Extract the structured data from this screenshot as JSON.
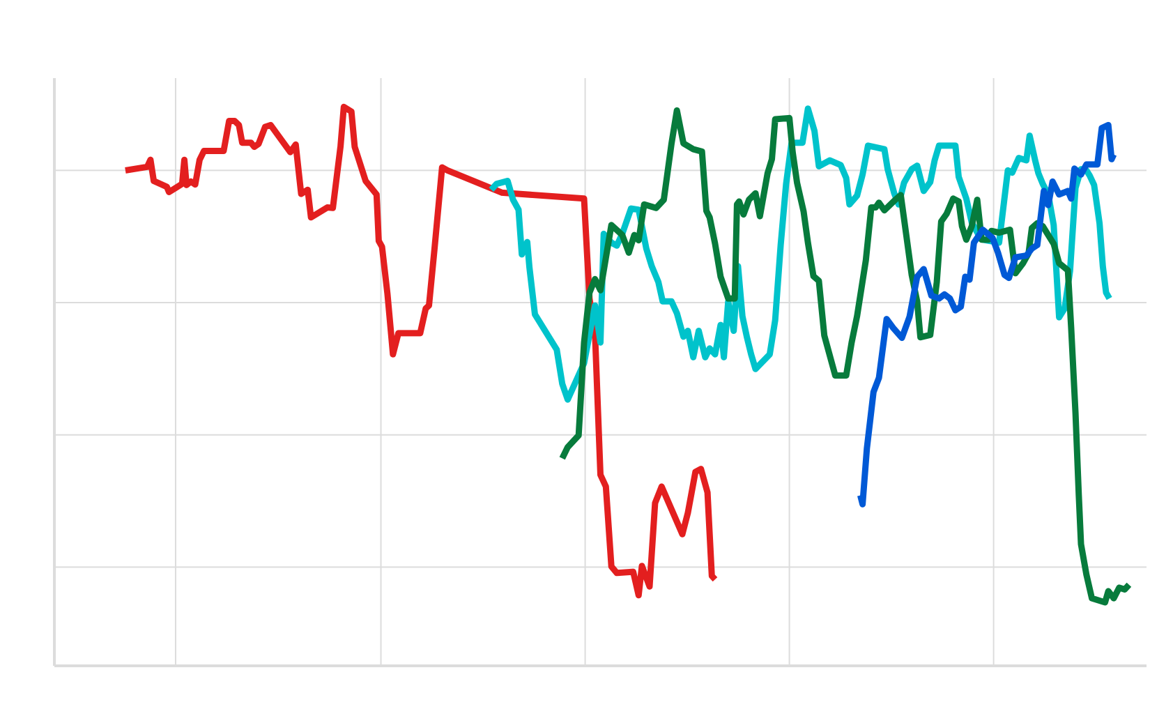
{
  "chart_data": {
    "type": "line",
    "title": "",
    "xlabel": "",
    "ylabel": "",
    "xlim": [
      0,
      100
    ],
    "ylim": [
      0,
      100
    ],
    "xticks": [
      11.1,
      29.9,
      48.6,
      67.3,
      86.0
    ],
    "yticks": [
      16.8,
      39.3,
      61.8,
      84.3
    ],
    "grid": true,
    "legend": "none",
    "series": [
      {
        "color": "#e31f1f",
        "points": [
          [
            6.5,
            84.3
          ],
          [
            8.5,
            84.9
          ],
          [
            8.8,
            86.1
          ],
          [
            9.1,
            82.5
          ],
          [
            10.3,
            81.5
          ],
          [
            10.5,
            80.6
          ],
          [
            11.7,
            82.0
          ],
          [
            11.9,
            86.1
          ],
          [
            12.1,
            81.8
          ],
          [
            12.5,
            82.4
          ],
          [
            12.9,
            81.9
          ],
          [
            13.3,
            86.1
          ],
          [
            13.7,
            87.6
          ],
          [
            15.5,
            87.6
          ],
          [
            16.0,
            92.7
          ],
          [
            16.5,
            92.7
          ],
          [
            16.9,
            92.0
          ],
          [
            17.2,
            89.0
          ],
          [
            18.0,
            89.0
          ],
          [
            18.3,
            88.3
          ],
          [
            18.7,
            88.8
          ],
          [
            19.3,
            91.7
          ],
          [
            19.8,
            92.0
          ],
          [
            21.6,
            87.4
          ],
          [
            22.1,
            88.7
          ],
          [
            22.4,
            83.6
          ],
          [
            22.6,
            80.3
          ],
          [
            23.2,
            81.0
          ],
          [
            23.5,
            76.3
          ],
          [
            25.0,
            78.0
          ],
          [
            25.5,
            77.9
          ],
          [
            26.2,
            88.4
          ],
          [
            26.5,
            95.1
          ],
          [
            27.2,
            94.3
          ],
          [
            27.5,
            88.3
          ],
          [
            28.5,
            82.5
          ],
          [
            29.5,
            80.2
          ],
          [
            29.7,
            72.3
          ],
          [
            30.0,
            71.3
          ],
          [
            30.5,
            63.3
          ],
          [
            31.0,
            53.0
          ],
          [
            31.5,
            56.6
          ],
          [
            33.5,
            56.6
          ],
          [
            34.0,
            60.8
          ],
          [
            34.3,
            61.3
          ],
          [
            34.8,
            70.8
          ],
          [
            35.5,
            84.8
          ],
          [
            36.0,
            84.3
          ],
          [
            41.0,
            80.5
          ],
          [
            48.5,
            79.5
          ],
          [
            49.0,
            62.5
          ],
          [
            49.5,
            56.5
          ],
          [
            50.0,
            32.5
          ],
          [
            50.5,
            30.5
          ],
          [
            51.0,
            16.9
          ],
          [
            51.5,
            15.8
          ],
          [
            53.0,
            16.0
          ],
          [
            53.5,
            12.0
          ],
          [
            53.8,
            17.0
          ],
          [
            54.5,
            13.5
          ],
          [
            55.0,
            27.7
          ],
          [
            55.6,
            30.5
          ],
          [
            57.5,
            22.4
          ],
          [
            58.0,
            26.0
          ],
          [
            58.7,
            33.0
          ],
          [
            59.2,
            33.5
          ],
          [
            59.8,
            29.5
          ],
          [
            60.2,
            15.3
          ],
          [
            60.5,
            14.7
          ]
        ]
      },
      {
        "color": "#00c3cb",
        "points": [
          [
            40.0,
            81.0
          ],
          [
            40.5,
            82.0
          ],
          [
            41.5,
            82.5
          ],
          [
            42.0,
            79.3
          ],
          [
            42.5,
            77.6
          ],
          [
            42.8,
            70.0
          ],
          [
            43.3,
            72.1
          ],
          [
            43.5,
            67.8
          ],
          [
            44.0,
            59.8
          ],
          [
            46.0,
            53.8
          ],
          [
            46.5,
            48.0
          ],
          [
            47.0,
            45.3
          ],
          [
            48.5,
            51.5
          ],
          [
            49.5,
            61.3
          ],
          [
            50.0,
            55.0
          ],
          [
            50.3,
            73.5
          ],
          [
            51.0,
            72.0
          ],
          [
            51.5,
            71.5
          ],
          [
            52.0,
            73.5
          ],
          [
            52.8,
            77.8
          ],
          [
            53.5,
            77.6
          ],
          [
            54.2,
            71.0
          ],
          [
            54.7,
            68.0
          ],
          [
            55.3,
            65.3
          ],
          [
            55.7,
            62.0
          ],
          [
            56.5,
            62.0
          ],
          [
            57.0,
            60.0
          ],
          [
            57.6,
            56.0
          ],
          [
            58.0,
            57.0
          ],
          [
            58.5,
            52.5
          ],
          [
            59.0,
            57.0
          ],
          [
            59.6,
            52.5
          ],
          [
            60.0,
            54.0
          ],
          [
            60.5,
            53.0
          ],
          [
            61.0,
            58.0
          ],
          [
            61.3,
            52.5
          ],
          [
            61.7,
            62.0
          ],
          [
            62.2,
            57.0
          ],
          [
            62.6,
            68.0
          ],
          [
            63.0,
            59.5
          ],
          [
            63.4,
            56.0
          ],
          [
            63.8,
            53.0
          ],
          [
            64.2,
            50.5
          ],
          [
            65.5,
            53.0
          ],
          [
            66.0,
            58.8
          ],
          [
            66.5,
            71.6
          ],
          [
            67.0,
            82.0
          ],
          [
            67.5,
            89.0
          ],
          [
            68.5,
            89.0
          ],
          [
            69.0,
            94.8
          ],
          [
            69.6,
            91.0
          ],
          [
            70.0,
            85.0
          ],
          [
            71.0,
            86.0
          ],
          [
            72.0,
            85.2
          ],
          [
            72.5,
            83.0
          ],
          [
            72.8,
            78.5
          ],
          [
            73.5,
            80.0
          ],
          [
            74.0,
            83.6
          ],
          [
            74.5,
            88.5
          ],
          [
            76.0,
            87.9
          ],
          [
            76.3,
            84.5
          ],
          [
            76.9,
            80.4
          ],
          [
            77.3,
            78.5
          ],
          [
            77.8,
            82.2
          ],
          [
            78.5,
            84.5
          ],
          [
            79.0,
            85.1
          ],
          [
            79.6,
            80.8
          ],
          [
            80.2,
            82.3
          ],
          [
            80.6,
            86.0
          ],
          [
            81.0,
            88.5
          ],
          [
            82.5,
            88.5
          ],
          [
            82.8,
            83.2
          ],
          [
            83.5,
            79.5
          ],
          [
            84.0,
            75.4
          ],
          [
            84.6,
            73.4
          ],
          [
            85.0,
            72.5
          ],
          [
            86.5,
            72.0
          ],
          [
            87.3,
            84.3
          ],
          [
            87.7,
            83.9
          ],
          [
            88.3,
            86.4
          ],
          [
            89.0,
            86.0
          ],
          [
            89.3,
            90.2
          ],
          [
            89.8,
            86.0
          ],
          [
            90.1,
            83.8
          ],
          [
            90.5,
            82.0
          ],
          [
            91.0,
            80.2
          ],
          [
            91.5,
            75.0
          ],
          [
            92.0,
            59.3
          ],
          [
            92.5,
            60.8
          ],
          [
            93.0,
            67.2
          ],
          [
            93.5,
            81.3
          ],
          [
            94.0,
            84.5
          ],
          [
            94.5,
            84.3
          ],
          [
            94.8,
            83.4
          ],
          [
            95.2,
            81.8
          ],
          [
            95.7,
            75.3
          ],
          [
            96.0,
            68.0
          ],
          [
            96.3,
            63.5
          ],
          [
            96.6,
            62.5
          ]
        ]
      },
      {
        "color": "#077b3c",
        "points": [
          [
            46.5,
            35.3
          ],
          [
            47.0,
            37.2
          ],
          [
            48.0,
            39.2
          ],
          [
            48.5,
            55.0
          ],
          [
            49.0,
            63.5
          ],
          [
            49.5,
            65.8
          ],
          [
            50.0,
            63.9
          ],
          [
            51.0,
            75.0
          ],
          [
            52.0,
            73.3
          ],
          [
            52.6,
            70.3
          ],
          [
            53.1,
            73.3
          ],
          [
            53.5,
            72.4
          ],
          [
            54.0,
            78.5
          ],
          [
            55.1,
            77.9
          ],
          [
            55.8,
            79.3
          ],
          [
            56.5,
            88.8
          ],
          [
            57.0,
            94.5
          ],
          [
            57.6,
            88.9
          ],
          [
            58.5,
            87.9
          ],
          [
            59.3,
            87.5
          ],
          [
            59.7,
            77.4
          ],
          [
            60.0,
            76.3
          ],
          [
            60.5,
            71.8
          ],
          [
            61.0,
            66.2
          ],
          [
            61.7,
            62.5
          ],
          [
            62.3,
            62.5
          ],
          [
            62.5,
            78.5
          ],
          [
            62.7,
            79.0
          ],
          [
            63.1,
            76.8
          ],
          [
            63.6,
            79.3
          ],
          [
            64.2,
            80.4
          ],
          [
            64.6,
            76.5
          ],
          [
            65.3,
            83.8
          ],
          [
            65.7,
            86.2
          ],
          [
            66.0,
            93.0
          ],
          [
            67.3,
            93.2
          ],
          [
            67.6,
            87.4
          ],
          [
            68.0,
            82.2
          ],
          [
            68.6,
            77.3
          ],
          [
            69.0,
            72.0
          ],
          [
            69.5,
            66.3
          ],
          [
            70.0,
            65.5
          ],
          [
            70.5,
            56.2
          ],
          [
            71.5,
            49.4
          ],
          [
            72.5,
            49.4
          ],
          [
            73.0,
            55.0
          ],
          [
            73.5,
            59.5
          ],
          [
            74.3,
            69.0
          ],
          [
            74.8,
            78.0
          ],
          [
            75.2,
            78.0
          ],
          [
            75.5,
            78.8
          ],
          [
            76.0,
            77.5
          ],
          [
            77.0,
            79.3
          ],
          [
            77.5,
            80.1
          ],
          [
            78.0,
            73.3
          ],
          [
            78.5,
            66.5
          ],
          [
            79.0,
            62.0
          ],
          [
            79.3,
            55.9
          ],
          [
            80.2,
            56.3
          ],
          [
            80.8,
            65.3
          ],
          [
            81.2,
            75.6
          ],
          [
            81.7,
            76.9
          ],
          [
            82.3,
            79.5
          ],
          [
            82.8,
            79.0
          ],
          [
            83.1,
            74.8
          ],
          [
            83.5,
            72.5
          ],
          [
            84.0,
            74.8
          ],
          [
            84.5,
            79.3
          ],
          [
            84.9,
            72.5
          ],
          [
            85.5,
            72.5
          ],
          [
            85.8,
            74.0
          ],
          [
            86.5,
            73.7
          ],
          [
            87.5,
            74.2
          ],
          [
            88.0,
            66.8
          ],
          [
            88.7,
            68.5
          ],
          [
            89.2,
            70.2
          ],
          [
            89.5,
            74.5
          ],
          [
            90.0,
            75.3
          ],
          [
            90.5,
            74.8
          ],
          [
            91.5,
            71.8
          ],
          [
            92.0,
            68.5
          ],
          [
            92.8,
            67.3
          ],
          [
            93.1,
            57.5
          ],
          [
            93.5,
            43.0
          ],
          [
            93.8,
            29.1
          ],
          [
            94.0,
            20.7
          ],
          [
            94.5,
            15.5
          ],
          [
            95.0,
            11.5
          ],
          [
            96.2,
            10.8
          ],
          [
            96.5,
            12.7
          ],
          [
            97.0,
            11.5
          ],
          [
            97.5,
            13.3
          ],
          [
            98.0,
            13.0
          ],
          [
            98.4,
            13.8
          ]
        ]
      },
      {
        "color": "#0059d6",
        "points": [
          [
            73.8,
            29.0
          ],
          [
            74.0,
            27.5
          ],
          [
            74.4,
            37.0
          ],
          [
            75.0,
            46.6
          ],
          [
            75.5,
            49.0
          ],
          [
            76.2,
            59.0
          ],
          [
            76.8,
            57.5
          ],
          [
            77.6,
            55.8
          ],
          [
            78.3,
            59.4
          ],
          [
            79.0,
            66.2
          ],
          [
            79.6,
            67.5
          ],
          [
            80.3,
            63.0
          ],
          [
            81.0,
            62.5
          ],
          [
            81.5,
            63.2
          ],
          [
            82.0,
            62.5
          ],
          [
            82.5,
            60.5
          ],
          [
            83.0,
            61.1
          ],
          [
            83.4,
            66.2
          ],
          [
            83.8,
            65.7
          ],
          [
            84.2,
            72.0
          ],
          [
            85.0,
            74.2
          ],
          [
            85.9,
            72.8
          ],
          [
            86.4,
            70.3
          ],
          [
            87.0,
            66.5
          ],
          [
            87.4,
            66.0
          ],
          [
            88.0,
            69.5
          ],
          [
            89.0,
            69.8
          ],
          [
            89.5,
            71.0
          ],
          [
            90.0,
            71.6
          ],
          [
            90.6,
            80.8
          ],
          [
            91.0,
            78.4
          ],
          [
            91.4,
            82.4
          ],
          [
            92.0,
            80.2
          ],
          [
            92.8,
            80.8
          ],
          [
            93.1,
            79.5
          ],
          [
            93.4,
            84.6
          ],
          [
            94.0,
            83.6
          ],
          [
            94.5,
            85.3
          ],
          [
            95.5,
            85.3
          ],
          [
            95.9,
            91.5
          ],
          [
            96.5,
            92.0
          ],
          [
            96.8,
            86.2
          ],
          [
            97.0,
            87.0
          ]
        ]
      }
    ]
  }
}
